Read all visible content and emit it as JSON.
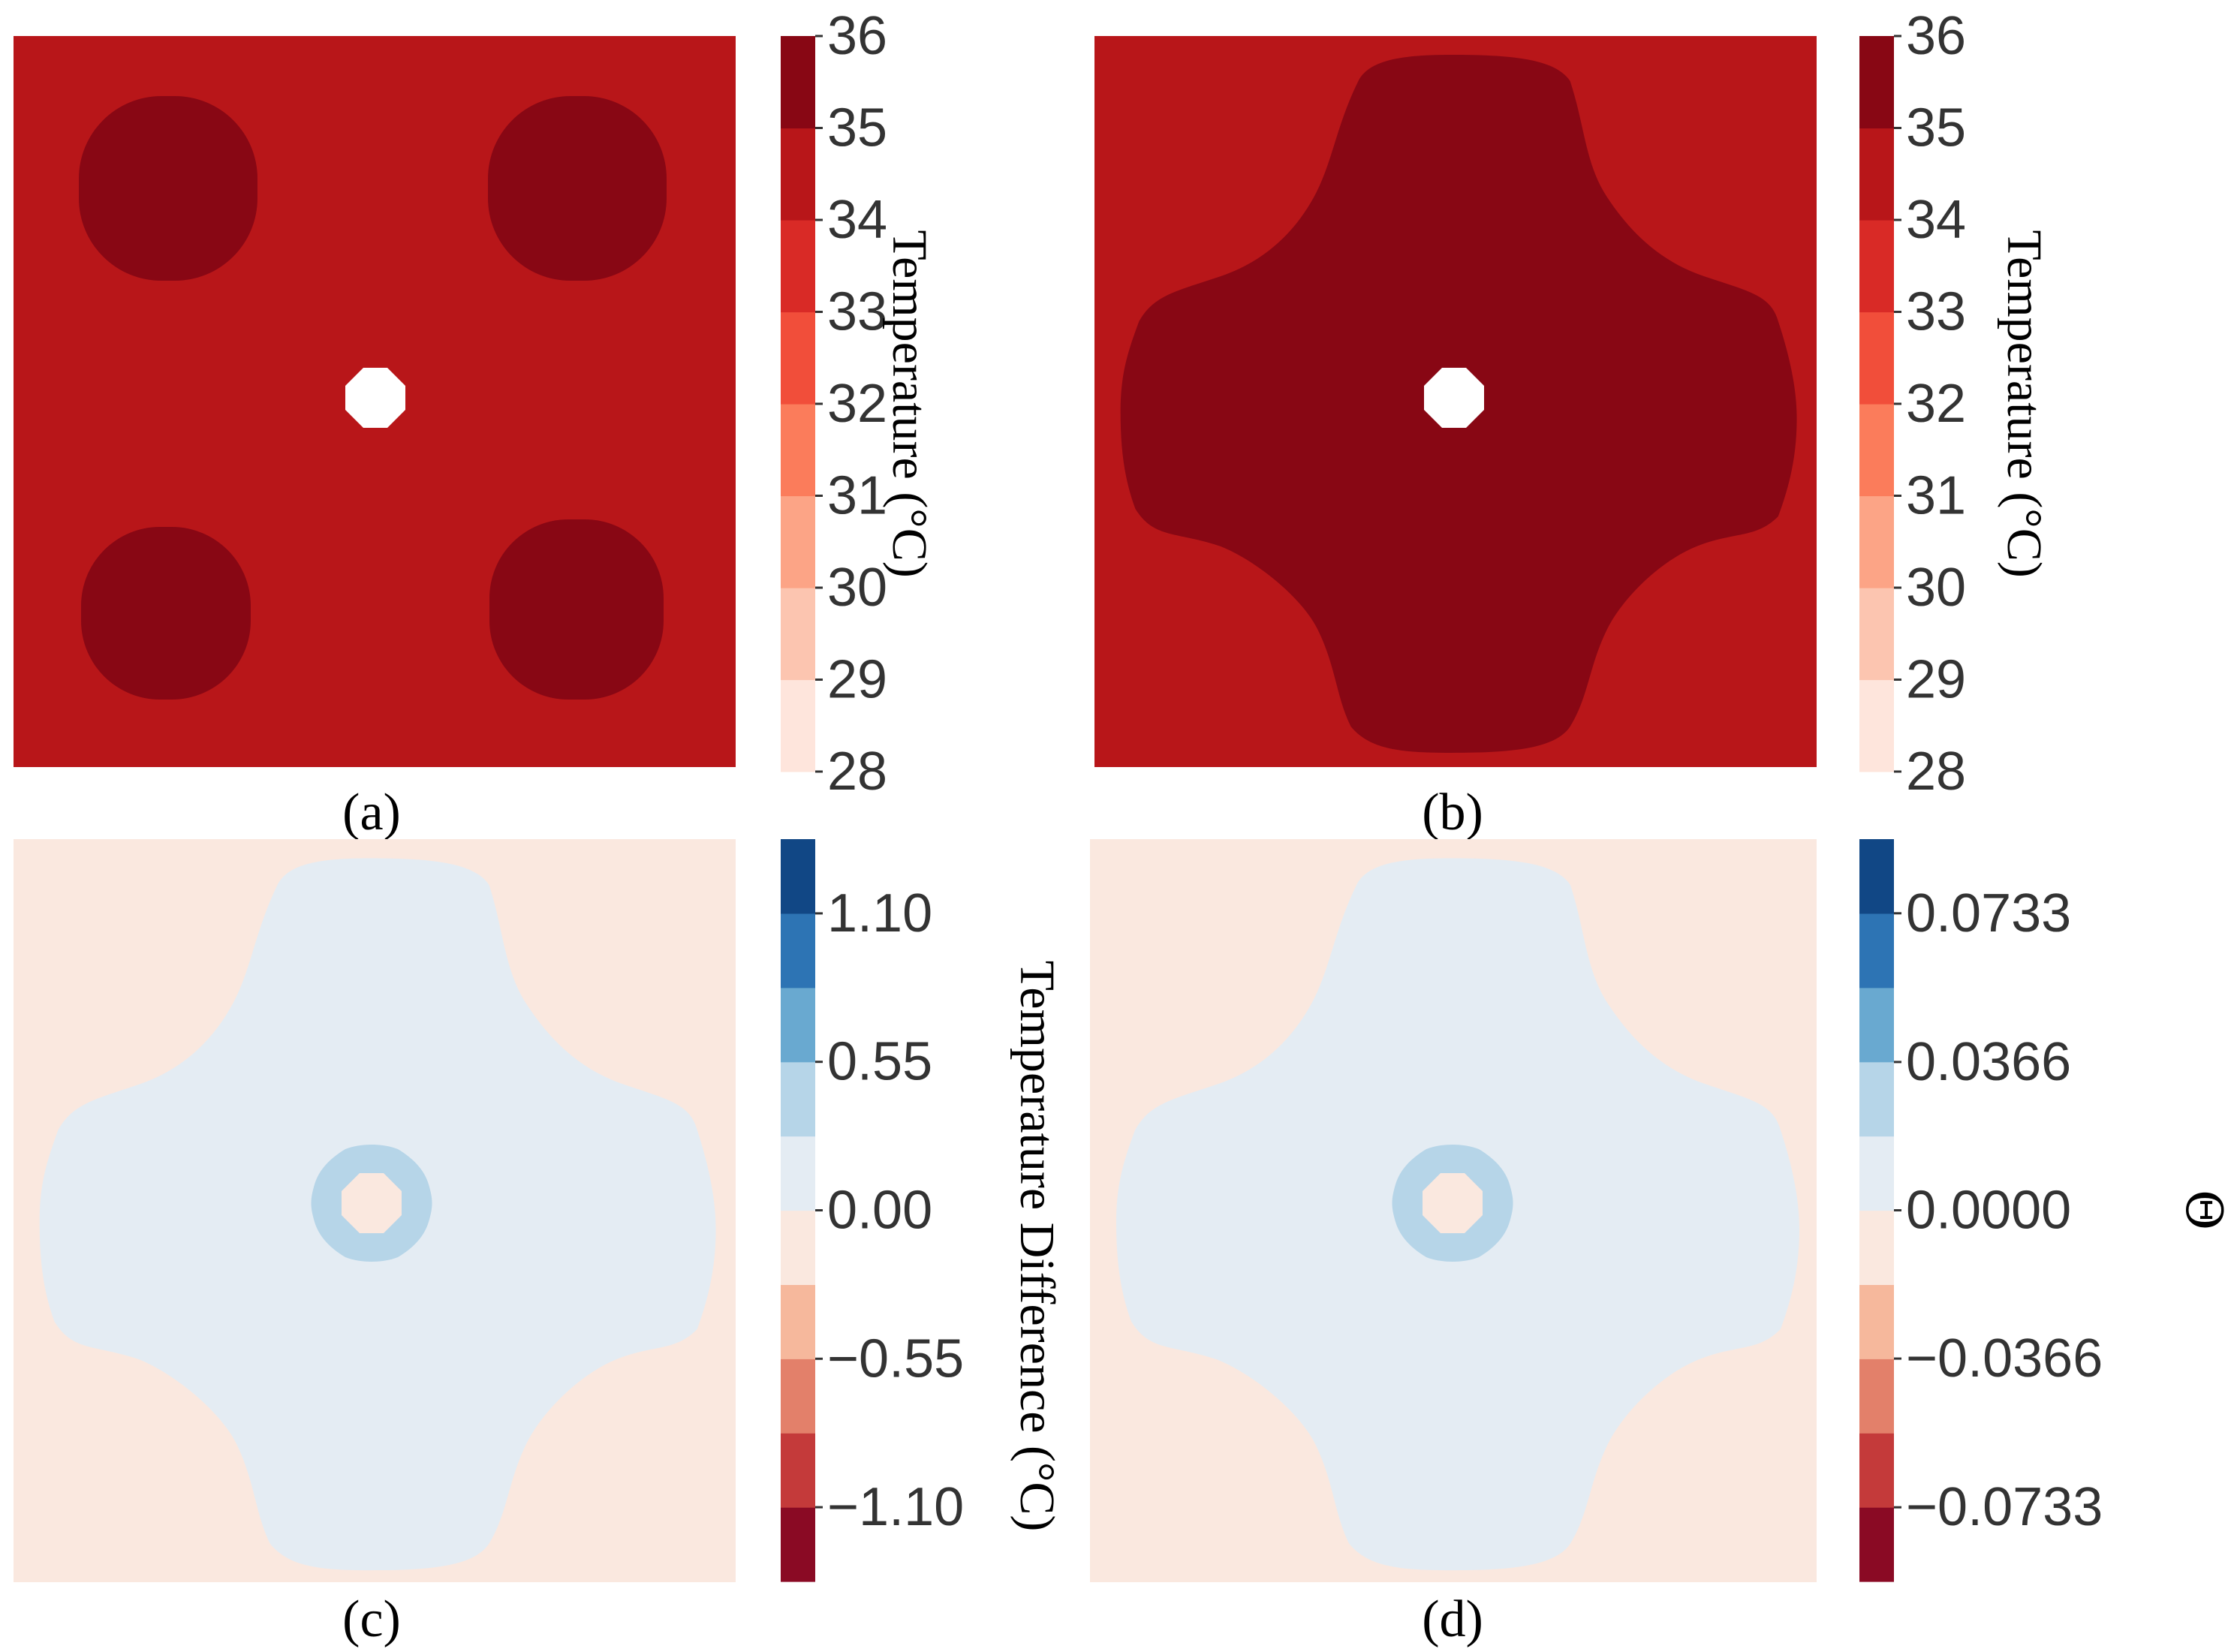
{
  "chart_data": [
    {
      "type": "heatmap",
      "panel_label": "(a)",
      "colorbar": {
        "label": "Temperature (°C)",
        "ticks": [
          "36",
          "35",
          "34",
          "33",
          "32",
          "31",
          "30",
          "29",
          "28"
        ],
        "range": [
          28,
          36
        ],
        "levels": [
          "#fee5dc",
          "#fcc5b0",
          "#fca486",
          "#fb7c5b",
          "#f14e3a",
          "#d92a26",
          "#b81619",
          "#880714"
        ]
      },
      "field": {
        "background": "#b81619",
        "hot_region": "#880714",
        "hot_region_shape": "four-blobs",
        "hole_color": "#ffffff"
      }
    },
    {
      "type": "heatmap",
      "panel_label": "(b)",
      "colorbar": {
        "label": "Temperature (°C)",
        "ticks": [
          "36",
          "35",
          "34",
          "33",
          "32",
          "31",
          "30",
          "29",
          "28"
        ],
        "range": [
          28,
          36
        ],
        "levels": [
          "#fee5dc",
          "#fcc5b0",
          "#fca486",
          "#fb7c5b",
          "#f14e3a",
          "#d92a26",
          "#b81619",
          "#880714"
        ]
      },
      "field": {
        "background": "#b81619",
        "hot_region": "#880714",
        "hot_region_shape": "cross",
        "hole_color": "#ffffff"
      }
    },
    {
      "type": "heatmap",
      "panel_label": "(c)",
      "colorbar": {
        "label": "Temperature Difference (°C)",
        "ticks": [
          "1.10",
          "0.55",
          "0.00",
          "−0.55",
          "−1.10"
        ],
        "range": [
          -1.375,
          1.375
        ],
        "levels": [
          "#8a0a24",
          "#c43a3a",
          "#e3806a",
          "#f6b89c",
          "#fae8df",
          "#e4ecf3",
          "#b6d5e8",
          "#69a9d0",
          "#2d74b4",
          "#114785"
        ]
      },
      "field": {
        "background": "#fae8df",
        "hot_region": "#e4ecf3",
        "hot_region_shape": "cross",
        "ring": "#b6d5e8",
        "hole_color": "#fae8df"
      }
    },
    {
      "type": "heatmap",
      "panel_label": "(d)",
      "colorbar": {
        "label": "Θ",
        "ticks": [
          "0.0733",
          "0.0366",
          "0.0000",
          "−0.0366",
          "−0.0733"
        ],
        "range": [
          -0.0916,
          0.0916
        ],
        "levels": [
          "#8a0a24",
          "#c43a3a",
          "#e3806a",
          "#f6b89c",
          "#fae8df",
          "#e4ecf3",
          "#b6d5e8",
          "#69a9d0",
          "#2d74b4",
          "#114785"
        ]
      },
      "field": {
        "background": "#fae8df",
        "hot_region": "#e4ecf3",
        "hot_region_shape": "cross",
        "ring": "#b6d5e8",
        "hole_color": "#fae8df"
      }
    }
  ]
}
